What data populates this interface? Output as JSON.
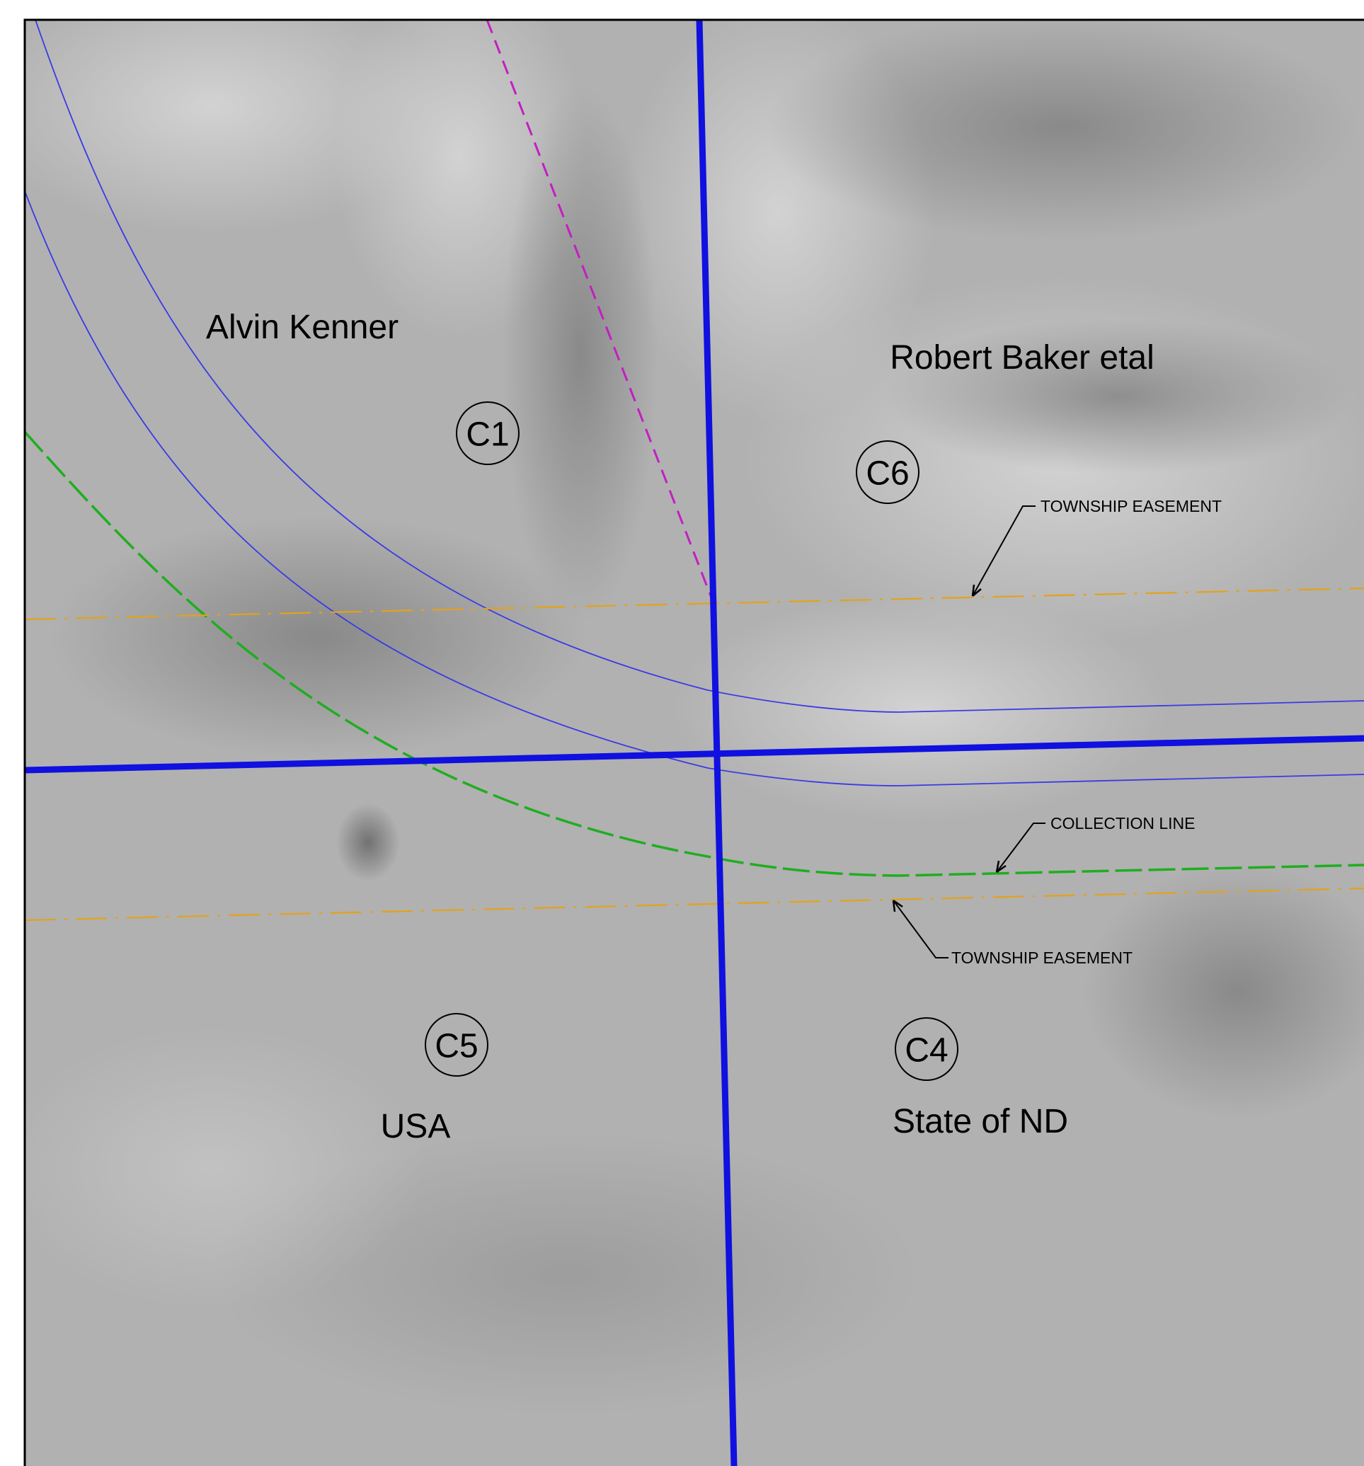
{
  "owners": {
    "northwest": "Alvin Kenner",
    "northeast": "Robert Baker etal",
    "southwest": "USA",
    "southeast": "State of ND"
  },
  "tracts": {
    "c1": "C1",
    "c6": "C6",
    "c5": "C5",
    "c4": "C4"
  },
  "callouts": {
    "easement_north": "TOWNSHIP EASEMENT",
    "collection_line": "COLLECTION LINE",
    "easement_south": "TOWNSHIP EASEMENT"
  },
  "colors": {
    "section_line": "#1010e0",
    "road_edge": "#3a3ae6",
    "collection_line": "#1fae1f",
    "township_easement": "#e3a21a",
    "magenta_line": "#c21fc2",
    "frame": "#000000",
    "background": "#b0b0b0"
  }
}
